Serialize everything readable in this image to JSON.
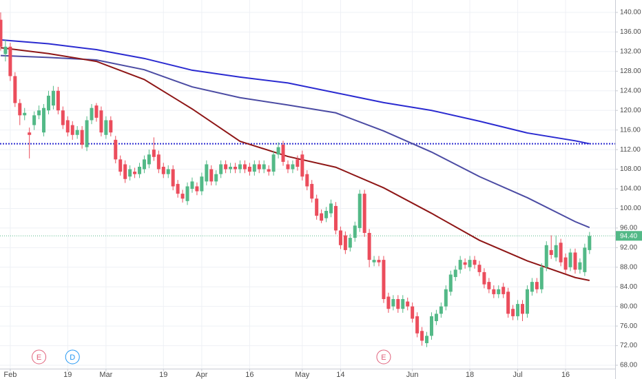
{
  "chart_data": {
    "type": "candlestick",
    "xlim": [
      -0.14,
      128.35
    ],
    "ylim": [
      67.3,
      142.53
    ],
    "grid": true,
    "up_color": "#53b987",
    "down_color": "#eb4d5c",
    "xticks": [
      {
        "value": 2,
        "label": "Feb"
      },
      {
        "value": 14,
        "label": "19"
      },
      {
        "value": 22,
        "label": "Mar"
      },
      {
        "value": 34,
        "label": "19"
      },
      {
        "value": 42,
        "label": "Apr"
      },
      {
        "value": 52,
        "label": "16"
      },
      {
        "value": 63,
        "label": "May"
      },
      {
        "value": 71,
        "label": "14"
      },
      {
        "value": 86,
        "label": "Jun"
      },
      {
        "value": 98,
        "label": "18"
      },
      {
        "value": 108,
        "label": "Jul"
      },
      {
        "value": 118,
        "label": "16"
      }
    ],
    "yticks": [
      {
        "value": 68,
        "label": "68.00"
      },
      {
        "value": 72,
        "label": "72.00"
      },
      {
        "value": 76,
        "label": "76.00"
      },
      {
        "value": 80,
        "label": "80.00"
      },
      {
        "value": 84,
        "label": "84.00"
      },
      {
        "value": 88,
        "label": "88.00"
      },
      {
        "value": 92,
        "label": "92.00"
      },
      {
        "value": 96,
        "label": "96.00"
      },
      {
        "value": 100,
        "label": "100.00"
      },
      {
        "value": 104,
        "label": "104.00"
      },
      {
        "value": 108,
        "label": "108.00"
      },
      {
        "value": 112,
        "label": "112.00"
      },
      {
        "value": 116,
        "label": "116.00"
      },
      {
        "value": 120,
        "label": "120.00"
      },
      {
        "value": 124,
        "label": "124.00"
      },
      {
        "value": 128,
        "label": "128.00"
      },
      {
        "value": 132,
        "label": "132.00"
      },
      {
        "value": 136,
        "label": "136.00"
      },
      {
        "value": 140,
        "label": "140.00"
      }
    ],
    "candles": {
      "open": [
        138.5,
        131.5,
        133,
        127,
        121.5,
        119,
        115.5,
        117,
        119,
        115.5,
        120,
        121,
        124,
        120,
        118,
        117,
        115,
        116,
        112.5,
        118,
        121,
        120,
        115,
        118,
        114,
        110,
        109,
        106.5,
        107.5,
        107,
        108,
        109,
        112,
        111,
        108.5,
        107,
        108,
        105,
        103,
        101.5,
        104,
        104.5,
        103.5,
        105.5,
        108,
        105.5,
        107,
        109,
        108,
        108.5,
        108,
        109,
        108.5,
        107.5,
        109,
        108,
        108,
        107.5,
        111,
        113,
        109,
        108,
        110,
        111,
        107,
        105,
        102,
        99,
        98,
        99,
        100.5,
        95.5,
        94.5,
        92,
        94,
        96,
        103,
        95,
        89,
        89.5,
        89.5,
        82,
        80,
        81.5,
        79.5,
        81,
        80,
        78,
        75,
        72.5,
        74,
        77,
        78.5,
        80,
        83,
        86,
        87.5,
        89,
        88,
        89.5,
        88.5,
        87,
        85,
        83.5,
        82.5,
        84,
        83,
        79.5,
        78,
        80.5,
        78.5,
        83,
        85,
        83.5,
        88,
        91.5,
        90,
        93,
        90,
        88,
        91,
        87.5,
        87,
        91.5
      ],
      "high": [
        140,
        134.5,
        133.8,
        127.8,
        122.3,
        120.5,
        116.5,
        119.8,
        121,
        121.3,
        124,
        125,
        124.8,
        120.8,
        118.8,
        117.8,
        116.8,
        116.8,
        118.8,
        121.3,
        121.5,
        120.8,
        118.8,
        118.8,
        114.8,
        110.8,
        109.8,
        108.8,
        108.3,
        109.3,
        110.8,
        112,
        114.5,
        111.8,
        109.3,
        108.8,
        108.8,
        105.8,
        103.8,
        105.3,
        106.3,
        105.3,
        107.3,
        109.8,
        108.8,
        107.8,
        109.8,
        109.8,
        109.3,
        109.3,
        109.8,
        109.8,
        109.3,
        109.8,
        109.8,
        109.8,
        108.8,
        111.8,
        113.5,
        113.8,
        109.8,
        109.8,
        110.8,
        111.8,
        107.8,
        105.8,
        102.8,
        99.8,
        100.3,
        101.8,
        101.3,
        96.3,
        95.3,
        94.8,
        97.3,
        103.8,
        103.8,
        95.8,
        90.3,
        90.3,
        90.3,
        82.8,
        82.3,
        82.3,
        82.3,
        81.8,
        80.8,
        78.8,
        75.8,
        74.8,
        78.8,
        79.3,
        80.8,
        84.3,
        87.3,
        88.3,
        90.3,
        89.8,
        90.3,
        90.3,
        89.3,
        87.8,
        85.8,
        84.3,
        84.3,
        84.8,
        83.8,
        80.3,
        81.3,
        81.3,
        84.3,
        85.8,
        85.8,
        88.8,
        93.3,
        94.5,
        94.5,
        93.8,
        90.8,
        91.8,
        91.8,
        89.8,
        92.8,
        95.2
      ],
      "low": [
        132.2,
        130,
        126,
        120.7,
        117,
        118,
        110.2,
        116,
        118.2,
        114.7,
        119.2,
        120.2,
        119.2,
        116.2,
        114.7,
        114,
        114.2,
        112.2,
        111.7,
        117.2,
        117.7,
        114.7,
        114.2,
        114.7,
        109.2,
        106.7,
        105.2,
        105.7,
        106.2,
        106.2,
        107.2,
        108.2,
        109.7,
        107.2,
        106.2,
        106.2,
        103.7,
        102.2,
        101.2,
        100.7,
        103.2,
        102.7,
        102.7,
        104.7,
        104.7,
        104.7,
        106.2,
        107.2,
        107.2,
        107.2,
        107.2,
        107.2,
        106.7,
        106.7,
        107.2,
        107.2,
        106.7,
        106.7,
        110.2,
        108.7,
        107.2,
        107.2,
        107.7,
        105.7,
        103.7,
        101.2,
        97.7,
        97,
        97.2,
        98.2,
        94.7,
        91.7,
        90.7,
        91.2,
        93.2,
        95.2,
        94.2,
        88,
        88.2,
        88.2,
        80.7,
        78.7,
        79.2,
        78.7,
        78.7,
        79.2,
        76.7,
        73.7,
        72,
        71.7,
        73.2,
        76.2,
        77.7,
        79.2,
        82.2,
        85.2,
        86.7,
        87.7,
        87.2,
        87.7,
        86.2,
        83.7,
        82.7,
        81.7,
        81.7,
        81.7,
        77.7,
        77.2,
        77.2,
        77,
        77.7,
        82.2,
        82.7,
        82.7,
        87.2,
        89.7,
        89.2,
        88.2,
        86.7,
        87.2,
        86.7,
        86.7,
        86.2,
        90.7
      ],
      "close": [
        133,
        133,
        127,
        121.5,
        119,
        119.5,
        115,
        119,
        120,
        120.5,
        123,
        124,
        120,
        117,
        115.5,
        115,
        116,
        113,
        118,
        120.5,
        118.5,
        115.5,
        118,
        115.5,
        110,
        107.5,
        106,
        108,
        107,
        108.5,
        110,
        111,
        110.5,
        108,
        107,
        108,
        104.5,
        103,
        102,
        104.5,
        105.5,
        103.5,
        106.5,
        109,
        105.5,
        107,
        109,
        108,
        108.5,
        108,
        109,
        108,
        107.5,
        109,
        108,
        109,
        107.5,
        111,
        112.5,
        109.5,
        108,
        109,
        108.5,
        106.5,
        104.5,
        102,
        98.5,
        97.5,
        99.5,
        101,
        95.5,
        92.5,
        91.5,
        94,
        96.5,
        103,
        95,
        89.5,
        89.5,
        89,
        81.5,
        79.5,
        81.5,
        79.5,
        81.5,
        80,
        77.5,
        74.5,
        73,
        74,
        78,
        78.5,
        80,
        83.5,
        86.5,
        87.5,
        89.5,
        88.5,
        89.5,
        88.5,
        87,
        84.5,
        83.5,
        82.5,
        83.5,
        82.5,
        78.5,
        78,
        80.5,
        78.5,
        83.5,
        85,
        83.5,
        88,
        92.5,
        90.5,
        92.5,
        89,
        87.5,
        91,
        87.5,
        89,
        92,
        94.4
      ]
    },
    "series": [
      {
        "color": "#2a2ad0",
        "x": [
          0,
          10,
          20,
          30,
          40,
          50,
          60,
          70,
          80,
          90,
          100,
          110,
          120,
          123
        ],
        "values": [
          134.4,
          133.6,
          132.4,
          130.6,
          128.2,
          126.8,
          125.6,
          123.6,
          121.6,
          120,
          117.8,
          115.4,
          113.8,
          113.2
        ]
      },
      {
        "color": "#4b4ba3",
        "x": [
          0,
          10,
          20,
          30,
          40,
          50,
          60,
          70,
          80,
          90,
          100,
          110,
          120,
          123
        ],
        "values": [
          131.2,
          130.8,
          130.3,
          128.3,
          124.8,
          122.6,
          121.1,
          119.5,
          115.8,
          111.5,
          106.5,
          102.2,
          97.3,
          96.1
        ]
      },
      {
        "color": "#8e1616",
        "x": [
          0,
          10,
          20,
          30,
          40,
          50,
          60,
          70,
          80,
          90,
          100,
          110,
          120,
          123
        ],
        "values": [
          132.8,
          131.6,
          130,
          126.3,
          120.3,
          113.7,
          110.6,
          108.4,
          104.2,
          99,
          93.5,
          89.3,
          85.9,
          85.3
        ]
      }
    ],
    "hlines": [
      {
        "value": 113.2,
        "color": "#2a2ad0"
      }
    ],
    "price_line": {
      "value": 94.4,
      "label": "94.40",
      "color": "#53b987"
    },
    "events": [
      {
        "label": "E",
        "x": 8,
        "color": "#e0607a"
      },
      {
        "label": "D",
        "x": 15,
        "color": "#2196f3"
      },
      {
        "label": "E",
        "x": 80,
        "color": "#e0607a"
      }
    ]
  }
}
